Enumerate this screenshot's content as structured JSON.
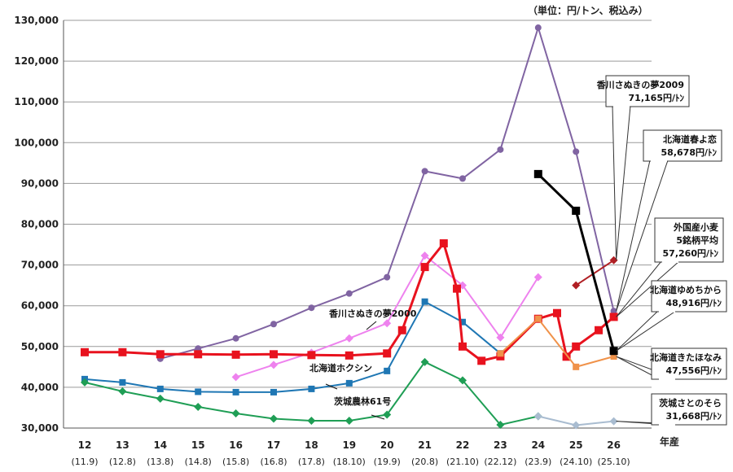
{
  "chart_data": {
    "type": "line",
    "unit_note": "（単位：円/トン、税込み）",
    "x_suffix": "年産",
    "categories": [
      "12",
      "13",
      "14",
      "15",
      "16",
      "17",
      "18",
      "19",
      "20",
      "21",
      "22",
      "23",
      "24",
      "25",
      "26"
    ],
    "sub_categories": [
      "(11.9)",
      "(12.8)",
      "(13.8)",
      "(14.8)",
      "(15.8)",
      "(16.8)",
      "(17.8)",
      "(18.10)",
      "(19.9)",
      "(20.8)",
      "(21.10)",
      "(22.12)",
      "(23.9)",
      "(24.10)",
      "(25.10)"
    ],
    "ylim": [
      30000,
      130000
    ],
    "y_ticks": [
      "30,000",
      "40,000",
      "50,000",
      "60,000",
      "70,000",
      "80,000",
      "90,000",
      "100,000",
      "110,000",
      "120,000",
      "130,000"
    ],
    "y_tick_values": [
      30000,
      40000,
      50000,
      60000,
      70000,
      80000,
      90000,
      100000,
      110000,
      120000,
      130000
    ],
    "series": [
      {
        "name": "purple",
        "color": "#8064a2",
        "marker": "circle",
        "points": [
          [
            2,
            47000
          ],
          [
            3,
            49500
          ],
          [
            4,
            52000
          ],
          [
            5,
            55500
          ],
          [
            6,
            59500
          ],
          [
            7,
            63000
          ],
          [
            8,
            67000
          ],
          [
            9,
            93000
          ],
          [
            10,
            91200
          ],
          [
            11,
            98300
          ],
          [
            12,
            128200
          ],
          [
            13,
            97800
          ],
          [
            14,
            58700
          ]
        ]
      },
      {
        "name": "pink",
        "color": "#ee82ee",
        "marker": "diamond",
        "points": [
          [
            4,
            42500
          ],
          [
            5,
            45500
          ],
          [
            6,
            48500
          ],
          [
            7,
            52000
          ],
          [
            8,
            55700
          ],
          [
            9,
            72300
          ],
          [
            10,
            65000
          ],
          [
            11,
            52200
          ],
          [
            12,
            67000
          ]
        ]
      },
      {
        "name": "blue",
        "color": "#1f77b4",
        "marker": "square",
        "points": [
          [
            0,
            42000
          ],
          [
            1,
            41200
          ],
          [
            2,
            39600
          ],
          [
            3,
            38900
          ],
          [
            4,
            38800
          ],
          [
            5,
            38800
          ],
          [
            6,
            39600
          ],
          [
            7,
            41000
          ],
          [
            8,
            44000
          ],
          [
            9,
            61000
          ],
          [
            10,
            56000
          ],
          [
            11,
            48300
          ]
        ]
      },
      {
        "name": "green",
        "color": "#1f9e55",
        "marker": "diamond",
        "points": [
          [
            0,
            41200
          ],
          [
            1,
            39000
          ],
          [
            2,
            37200
          ],
          [
            3,
            35200
          ],
          [
            4,
            33600
          ],
          [
            5,
            32300
          ],
          [
            6,
            31800
          ],
          [
            7,
            31800
          ],
          [
            8,
            33300
          ],
          [
            9,
            46200
          ],
          [
            10,
            41700
          ],
          [
            11,
            30800
          ],
          [
            12,
            32900
          ]
        ]
      },
      {
        "name": "light-blue",
        "color": "#a9bcd0",
        "marker": "diamond",
        "points": [
          [
            12,
            32900
          ],
          [
            13,
            30700
          ],
          [
            14,
            31668
          ]
        ]
      },
      {
        "name": "red",
        "color": "#e8121e",
        "marker": "square",
        "width": 3,
        "points": [
          [
            0,
            48600
          ],
          [
            1,
            48600
          ],
          [
            2,
            48100
          ],
          [
            3,
            48100
          ],
          [
            4,
            48000
          ],
          [
            5,
            48100
          ],
          [
            6,
            47900
          ],
          [
            7,
            47800
          ],
          [
            8,
            48300
          ],
          [
            8.4,
            54000
          ],
          [
            9,
            69500
          ],
          [
            9.5,
            75300
          ],
          [
            9.85,
            64200
          ],
          [
            10,
            50000
          ],
          [
            10.5,
            46500
          ],
          [
            11,
            47600
          ],
          [
            12,
            56800
          ],
          [
            12.5,
            58200
          ],
          [
            12.75,
            47500
          ],
          [
            13,
            50000
          ],
          [
            13.6,
            54000
          ],
          [
            14,
            57260
          ]
        ]
      },
      {
        "name": "orange",
        "color": "#f0924a",
        "marker": "square",
        "points": [
          [
            11,
            48300
          ],
          [
            12,
            56800
          ],
          [
            13,
            45000
          ],
          [
            14,
            47556
          ]
        ]
      },
      {
        "name": "dark-red",
        "color": "#b01f24",
        "marker": "diamond",
        "points": [
          [
            13,
            65000
          ],
          [
            14,
            71165
          ]
        ]
      },
      {
        "name": "black",
        "color": "#000000",
        "marker": "square",
        "width": 3,
        "points": [
          [
            12,
            92300
          ],
          [
            13,
            83300
          ],
          [
            14,
            48916
          ]
        ]
      }
    ],
    "inline_labels": [
      "香川さぬきの夢2000",
      "北海道ホクシン",
      "茨城農林61号"
    ],
    "callouts": [
      {
        "lines": [
          "香川さぬきの夢2009",
          "71,165円/ﾄﾝ"
        ],
        "target": [
          14,
          71165
        ]
      },
      {
        "lines": [
          "北海道春よ恋",
          "58,678円/ﾄﾝ"
        ],
        "target": [
          14,
          58700
        ]
      },
      {
        "lines": [
          "外国産小麦",
          "5銘柄平均",
          "57,260円/ﾄﾝ"
        ],
        "target": [
          14,
          57260
        ]
      },
      {
        "lines": [
          "北海道ゆめちから",
          "48,916円/ﾄﾝ"
        ],
        "target": [
          14,
          48916
        ]
      },
      {
        "lines": [
          "北海道きたほなみ",
          "47,556円/ﾄﾝ"
        ],
        "target": [
          14,
          47556
        ]
      },
      {
        "lines": [
          "茨城さとのそら",
          "31,668円/ﾄﾝ"
        ],
        "target": [
          14,
          31668
        ]
      }
    ]
  }
}
